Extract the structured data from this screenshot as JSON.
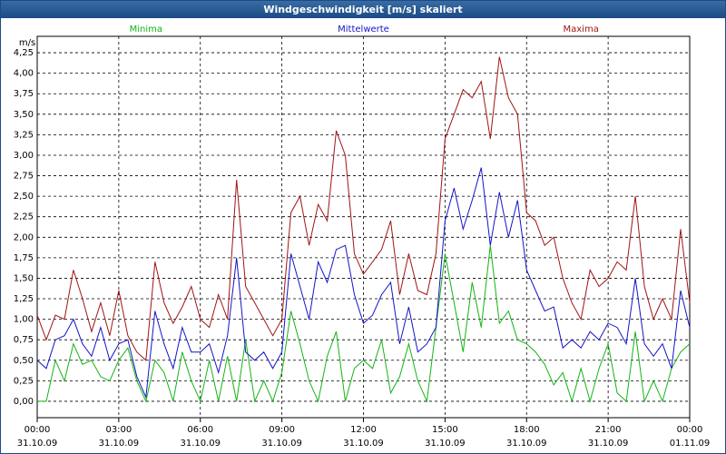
{
  "chart_data": {
    "type": "line",
    "title": "Windgeschwindigkeit [m/s] skaliert",
    "y_label": "m/s",
    "x": [
      0,
      20,
      40,
      60,
      80,
      100,
      120,
      140,
      160,
      180,
      200,
      220,
      240,
      260,
      280,
      300,
      320,
      340,
      360,
      380,
      400,
      420,
      440,
      460,
      480,
      500,
      520,
      540,
      560,
      580,
      600,
      620,
      640,
      660,
      680,
      700,
      720,
      740,
      760,
      780,
      800,
      820,
      840,
      860,
      880,
      900,
      920,
      940,
      960,
      980,
      1000,
      1020,
      1040,
      1060,
      1080,
      1100,
      1120,
      1140,
      1160,
      1180,
      1200,
      1220,
      1240,
      1260,
      1280,
      1300,
      1320,
      1340,
      1360,
      1380,
      1400,
      1420,
      1440
    ],
    "series": [
      {
        "name": "Minima",
        "color": "#14b414",
        "values": [
          0.0,
          0.0,
          0.5,
          0.25,
          0.7,
          0.45,
          0.5,
          0.3,
          0.25,
          0.5,
          0.65,
          0.25,
          0.0,
          0.5,
          0.35,
          0.0,
          0.6,
          0.25,
          0.0,
          0.5,
          0.0,
          0.55,
          0.0,
          0.75,
          0.0,
          0.25,
          0.0,
          0.35,
          1.1,
          0.7,
          0.25,
          0.0,
          0.55,
          0.85,
          0.0,
          0.4,
          0.5,
          0.4,
          0.75,
          0.1,
          0.3,
          0.7,
          0.25,
          0.0,
          0.9,
          1.8,
          1.2,
          0.6,
          1.45,
          0.9,
          1.9,
          0.95,
          1.1,
          0.75,
          0.7,
          0.6,
          0.45,
          0.2,
          0.35,
          0.0,
          0.4,
          0.0,
          0.4,
          0.7,
          0.1,
          0.0,
          0.85,
          0.0,
          0.25,
          0.0,
          0.4,
          0.6,
          0.7
        ]
      },
      {
        "name": "Mittelwerte",
        "color": "#1414c8",
        "values": [
          0.5,
          0.4,
          0.75,
          0.8,
          1.0,
          0.7,
          0.55,
          0.9,
          0.5,
          0.7,
          0.75,
          0.3,
          0.05,
          1.1,
          0.7,
          0.4,
          0.9,
          0.6,
          0.6,
          0.7,
          0.35,
          0.8,
          1.75,
          0.6,
          0.5,
          0.6,
          0.4,
          0.6,
          1.8,
          1.4,
          1.0,
          1.7,
          1.45,
          1.85,
          1.9,
          1.3,
          0.95,
          1.05,
          1.3,
          1.45,
          0.7,
          1.15,
          0.6,
          0.7,
          0.9,
          2.2,
          2.6,
          2.1,
          2.45,
          2.85,
          1.9,
          2.55,
          2.0,
          2.45,
          1.6,
          1.35,
          1.1,
          1.15,
          0.65,
          0.75,
          0.65,
          0.85,
          0.75,
          0.95,
          0.9,
          0.7,
          1.5,
          0.7,
          0.55,
          0.7,
          0.4,
          1.35,
          0.9
        ]
      },
      {
        "name": "Maxima",
        "color": "#a01414",
        "values": [
          1.05,
          0.75,
          1.05,
          1.0,
          1.6,
          1.25,
          0.85,
          1.2,
          0.8,
          1.35,
          0.8,
          0.6,
          0.5,
          1.7,
          1.2,
          0.95,
          1.15,
          1.4,
          1.0,
          0.9,
          1.3,
          1.0,
          2.7,
          1.4,
          1.2,
          1.0,
          0.8,
          1.0,
          2.3,
          2.5,
          1.9,
          2.4,
          2.2,
          3.3,
          3.0,
          1.8,
          1.55,
          1.7,
          1.85,
          2.2,
          1.3,
          1.8,
          1.35,
          1.3,
          1.8,
          3.2,
          3.5,
          3.8,
          3.7,
          3.9,
          3.2,
          4.2,
          3.7,
          3.5,
          2.3,
          2.2,
          1.9,
          2.0,
          1.5,
          1.2,
          1.0,
          1.6,
          1.4,
          1.5,
          1.7,
          1.6,
          2.5,
          1.4,
          1.0,
          1.25,
          1.0,
          2.1,
          1.2
        ]
      }
    ],
    "xlim": [
      0,
      1440
    ],
    "xticks": [
      {
        "value": 0,
        "label": "00:00\n31.10.09"
      },
      {
        "value": 180,
        "label": "03:00\n31.10.09"
      },
      {
        "value": 360,
        "label": "06:00\n31.10.09"
      },
      {
        "value": 540,
        "label": "09:00\n31.10.09"
      },
      {
        "value": 720,
        "label": "12:00\n31.10.09"
      },
      {
        "value": 900,
        "label": "15:00\n31.10.09"
      },
      {
        "value": 1080,
        "label": "18:00\n31.10.09"
      },
      {
        "value": 1260,
        "label": "21:00\n31.10.09"
      },
      {
        "value": 1440,
        "label": "00:00\n01.11.09"
      }
    ],
    "ylim": [
      -0.2,
      4.45
    ],
    "yticks": [
      {
        "value": 0,
        "label": "0,00"
      },
      {
        "value": 0.25,
        "label": "0,25"
      },
      {
        "value": 0.5,
        "label": "0,50"
      },
      {
        "value": 0.75,
        "label": "0,75"
      },
      {
        "value": 1,
        "label": "1,00"
      },
      {
        "value": 1.25,
        "label": "1,25"
      },
      {
        "value": 1.5,
        "label": "1,50"
      },
      {
        "value": 1.75,
        "label": "1,75"
      },
      {
        "value": 2,
        "label": "2,00"
      },
      {
        "value": 2.25,
        "label": "2,25"
      },
      {
        "value": 2.5,
        "label": "2,50"
      },
      {
        "value": 2.75,
        "label": "2,75"
      },
      {
        "value": 3,
        "label": "3,00"
      },
      {
        "value": 3.25,
        "label": "3,25"
      },
      {
        "value": 3.5,
        "label": "3,50"
      },
      {
        "value": 3.75,
        "label": "3,75"
      },
      {
        "value": 4,
        "label": "4,00"
      },
      {
        "value": 4.25,
        "label": "4,25"
      }
    ],
    "grid": true,
    "legend": "top"
  }
}
